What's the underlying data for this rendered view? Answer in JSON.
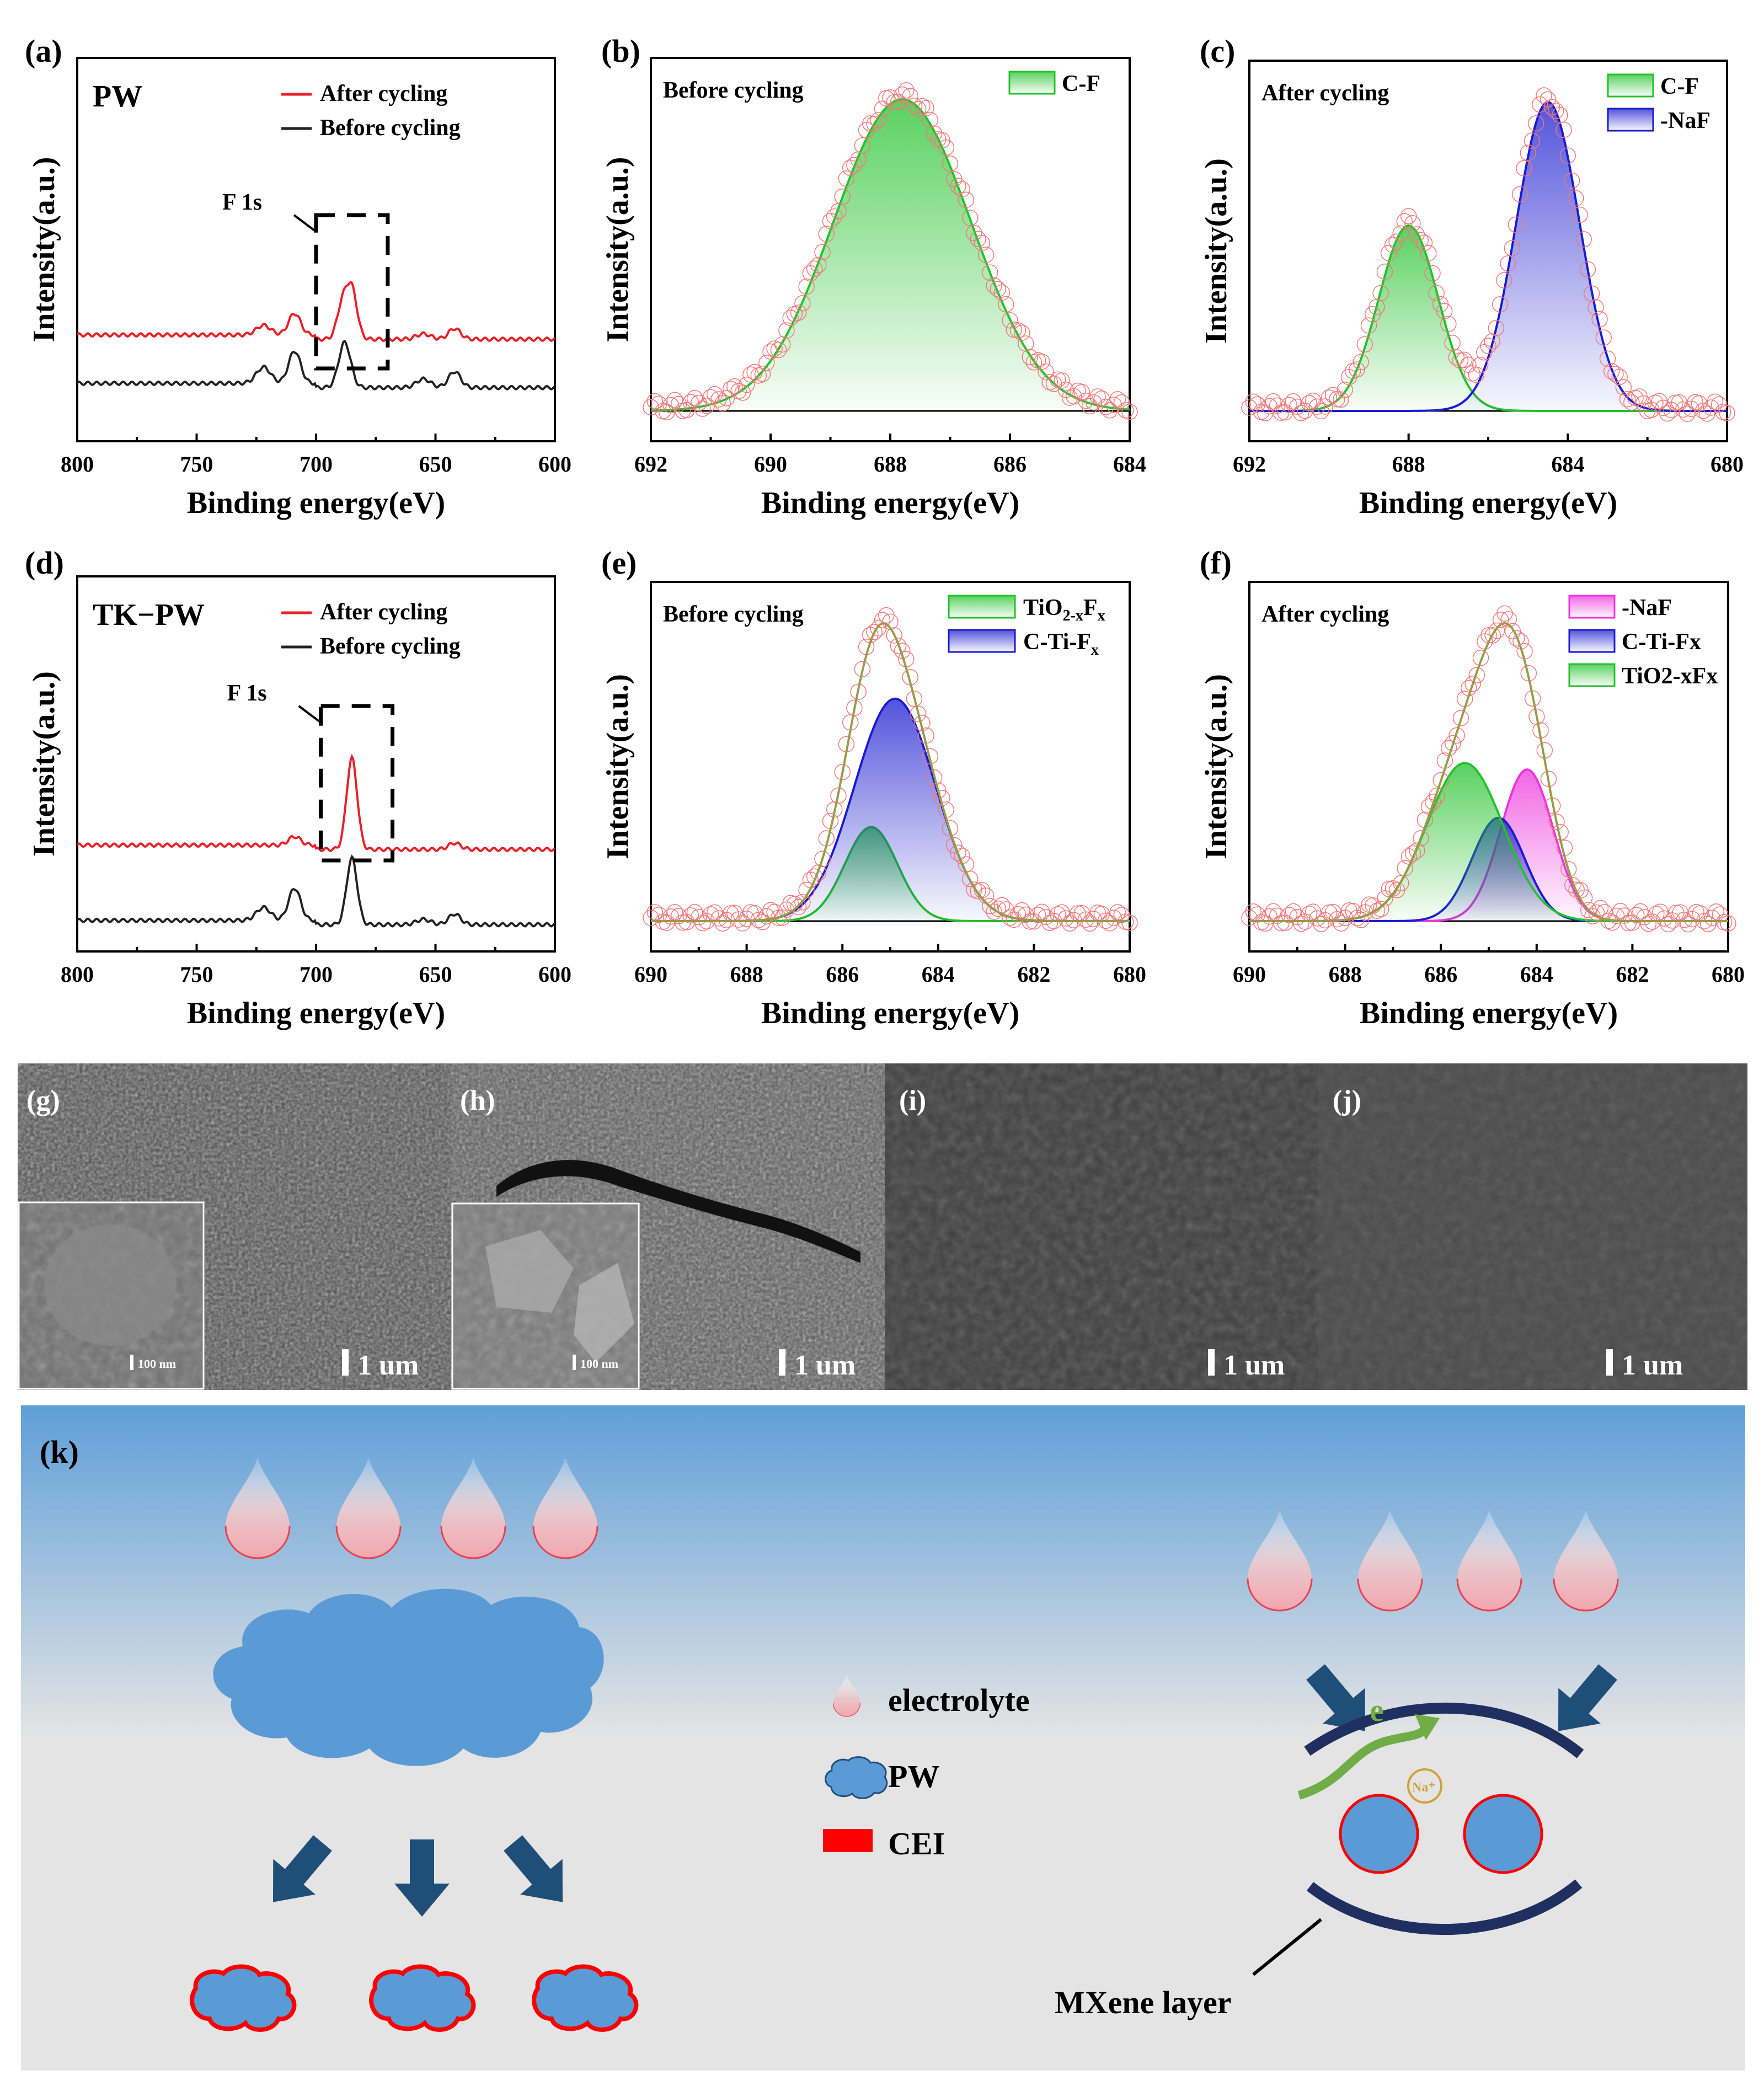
{
  "colors": {
    "red": "#e8202a",
    "black": "#222222",
    "green": "#22c22a",
    "blue": "#1a1ad0",
    "magenta": "#ee33dd",
    "olive": "#9a9a4a",
    "circle": "#f07878",
    "navy": "#1f4e79",
    "pw_blue": "#5b9bd5",
    "cei_red": "#ff0000",
    "arrow_green": "#70ad47",
    "na_orange": "#d4a03a"
  },
  "chart_data": [
    {
      "id": "a",
      "type": "line",
      "panel_label": "(a)",
      "sample": "PW",
      "xlabel": "Binding energy(eV)",
      "ylabel": "Intensity(a.u.)",
      "xlim": [
        800,
        600
      ],
      "xticks": [
        800,
        750,
        700,
        650,
        600
      ],
      "tick_labels": [
        "800",
        "750",
        "700",
        "650",
        "600"
      ],
      "annotation": "F 1s",
      "highlight_box": [
        700,
        670
      ],
      "series": [
        {
          "name": "After cycling",
          "color": "#e8202a",
          "baseline": 1.0,
          "peaks": [
            [
              722,
              0.09,
              3
            ],
            [
              709,
              0.2,
              2.5
            ],
            [
              689,
              0.32,
              2.2
            ],
            [
              685,
              0.45,
              2.2
            ],
            [
              655,
              0.05,
              3
            ],
            [
              642,
              0.1,
              2.5
            ]
          ]
        },
        {
          "name": "Before cycling",
          "color": "#222222",
          "baseline": 0.55,
          "peaks": [
            [
              722,
              0.15,
              3
            ],
            [
              709,
              0.3,
              2.5
            ],
            [
              688,
              0.42,
              2.5
            ],
            [
              655,
              0.08,
              3
            ],
            [
              642,
              0.15,
              2.5
            ]
          ]
        }
      ]
    },
    {
      "id": "b",
      "type": "line",
      "panel_label": "(b)",
      "inset_title": "Before cycling",
      "xlabel": "Binding energy(eV)",
      "ylabel": "Intensity(a.u.)",
      "xlim": [
        692,
        684
      ],
      "xticks": [
        692,
        690,
        688,
        686,
        684
      ],
      "tick_labels": [
        "692",
        "690",
        "688",
        "686",
        "684"
      ],
      "series": [
        {
          "name": "C-F",
          "color": "#22c22a",
          "center": 687.8,
          "height": 1.0,
          "sigma": 1.15
        }
      ],
      "envelope": false
    },
    {
      "id": "c",
      "type": "line",
      "panel_label": "(c)",
      "inset_title": "After cycling",
      "xlabel": "Binding energy(eV)",
      "ylabel": "Intensity(a.u.)",
      "xlim": [
        692,
        680
      ],
      "xticks": [
        692,
        688,
        684,
        680
      ],
      "tick_labels": [
        "692",
        "688",
        "684",
        "680"
      ],
      "series": [
        {
          "name": "C-F",
          "color": "#22c22a",
          "center": 688.0,
          "height": 0.6,
          "sigma": 0.75
        },
        {
          "name": "-NaF",
          "color": "#1a1ad0",
          "center": 684.5,
          "height": 1.0,
          "sigma": 0.8
        }
      ],
      "envelope": false
    },
    {
      "id": "d",
      "type": "line",
      "panel_label": "(d)",
      "sample": "TK−PW",
      "xlabel": "Binding energy(eV)",
      "ylabel": "Intensity(a.u.)",
      "xlim": [
        800,
        600
      ],
      "xticks": [
        800,
        750,
        700,
        650,
        600
      ],
      "tick_labels": [
        "800",
        "750",
        "700",
        "650",
        "600"
      ],
      "annotation": "F 1s",
      "highlight_box": [
        698,
        668
      ],
      "series": [
        {
          "name": "After cycling",
          "color": "#e8202a",
          "baseline": 1.0,
          "peaks": [
            [
              709,
              0.08,
              2.5
            ],
            [
              685,
              0.85,
              2.2
            ],
            [
              642,
              0.06,
              2.5
            ]
          ]
        },
        {
          "name": "Before cycling",
          "color": "#222222",
          "baseline": 0.3,
          "peaks": [
            [
              722,
              0.12,
              3
            ],
            [
              709,
              0.3,
              2.5
            ],
            [
              685,
              0.62,
              2.2
            ],
            [
              655,
              0.05,
              3
            ],
            [
              642,
              0.1,
              2.5
            ]
          ]
        }
      ]
    },
    {
      "id": "e",
      "type": "line",
      "panel_label": "(e)",
      "inset_title": "Before cycling",
      "xlabel": "Binding energy(eV)",
      "ylabel": "Intensity(a.u.)",
      "xlim": [
        690,
        680
      ],
      "xticks": [
        690,
        688,
        686,
        684,
        682,
        680
      ],
      "tick_labels": [
        "690",
        "688",
        "686",
        "684",
        "682",
        "680"
      ],
      "series": [
        {
          "name": "TiO2-xFx",
          "legend_base": "TiO",
          "legend_sub": "2-x",
          "legend_mid": "F",
          "legend_sub2": "x",
          "color": "#22c22a",
          "center": 685.4,
          "height": 0.33,
          "sigma": 0.55
        },
        {
          "name": "C-Ti-Fx",
          "legend_base": "C-Ti-F",
          "legend_sub": "x",
          "legend_mid": "",
          "legend_sub2": "",
          "color": "#1a1ad0",
          "center": 684.9,
          "height": 0.78,
          "sigma": 0.85
        }
      ],
      "envelope": true
    },
    {
      "id": "f",
      "type": "line",
      "panel_label": "(f)",
      "inset_title": "After cycling",
      "xlabel": "Binding energy(eV)",
      "ylabel": "Intensity(a.u.)",
      "xlim": [
        690,
        680
      ],
      "xticks": [
        690,
        688,
        686,
        684,
        682,
        680
      ],
      "tick_labels": [
        "690",
        "688",
        "686",
        "684",
        "682",
        "680"
      ],
      "series": [
        {
          "name": "-NaF",
          "color": "#ee33dd",
          "center": 684.2,
          "height": 0.47,
          "sigma": 0.55
        },
        {
          "name": "C-Ti-Fx",
          "color": "#1a1ad0",
          "center": 684.8,
          "height": 0.32,
          "sigma": 0.55
        },
        {
          "name": "TiO2-xFx",
          "color": "#22c22a",
          "center": 685.5,
          "height": 0.49,
          "sigma": 0.8
        }
      ],
      "envelope": true
    }
  ],
  "sem": [
    {
      "label": "(g)",
      "scale": "1 um",
      "inset_scale": "100 nm"
    },
    {
      "label": "(h)",
      "scale": "1 um",
      "inset_scale": "100 nm"
    },
    {
      "label": "(i)",
      "scale": "1 um"
    },
    {
      "label": "(j)",
      "scale": "1 um"
    }
  ],
  "schematic": {
    "label": "(k)",
    "legend": [
      "electrolyte",
      "PW",
      "CEI"
    ],
    "electron": "e",
    "sodium": "Na⁺",
    "mxene": "MXene layer"
  }
}
